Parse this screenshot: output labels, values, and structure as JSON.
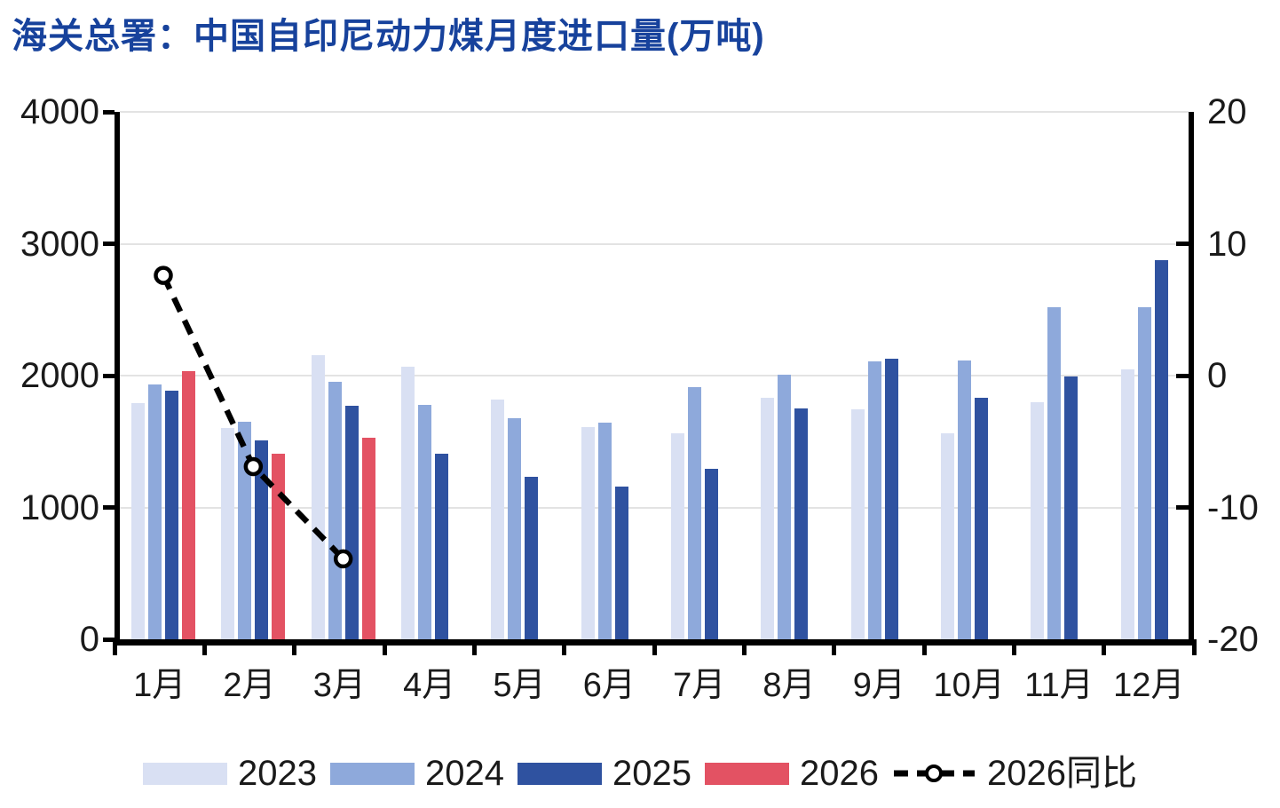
{
  "title": "海关总署：中国自印尼动力煤月度进口量(万吨)",
  "colors": {
    "title": "#17429C",
    "text": "#1A1A1A",
    "axis": "#000000",
    "gridline": "#E3E3E3",
    "series2023": "#D9E0F3",
    "series2024": "#8EA9DB",
    "series2025": "#2F52A0",
    "series2026": "#E35263",
    "line": "#000000",
    "marker_fill": "#FFFFFF"
  },
  "chart_data": {
    "type": "bar",
    "title": "海关总署：中国自印尼动力煤月度进口量(万吨)",
    "categories": [
      "1月",
      "2月",
      "3月",
      "4月",
      "5月",
      "6月",
      "7月",
      "8月",
      "9月",
      "10月",
      "11月",
      "12月"
    ],
    "series": [
      {
        "name": "2023",
        "type": "bar",
        "color_key": "series2023",
        "values": [
          1790,
          1600,
          2155,
          2070,
          1815,
          1610,
          1560,
          1835,
          1745,
          1565,
          1800,
          2050
        ]
      },
      {
        "name": "2024",
        "type": "bar",
        "color_key": "series2024",
        "values": [
          1935,
          1650,
          1950,
          1775,
          1675,
          1640,
          1915,
          2010,
          2105,
          2115,
          2520,
          2520
        ]
      },
      {
        "name": "2025",
        "type": "bar",
        "color_key": "series2025",
        "values": [
          1885,
          1510,
          1770,
          1405,
          1235,
          1155,
          1295,
          1750,
          2125,
          1830,
          1990,
          2875
        ]
      },
      {
        "name": "2026",
        "type": "bar",
        "color_key": "series2026",
        "values": [
          2035,
          1405,
          1530,
          null,
          null,
          null,
          null,
          null,
          null,
          null,
          null,
          null
        ]
      },
      {
        "name": "2026同比",
        "type": "line",
        "axis": "right",
        "color_key": "line",
        "values": [
          7.6,
          -6.9,
          -13.9,
          null,
          null,
          null,
          null,
          null,
          null,
          null,
          null,
          null
        ]
      }
    ],
    "left_axis": {
      "min": 0,
      "max": 4000,
      "ticks": [
        0,
        1000,
        2000,
        3000,
        4000
      ]
    },
    "right_axis": {
      "min": -20,
      "max": 20,
      "ticks": [
        -20,
        -10,
        0,
        10,
        20
      ]
    },
    "grid": true,
    "legend_position": "bottom"
  }
}
